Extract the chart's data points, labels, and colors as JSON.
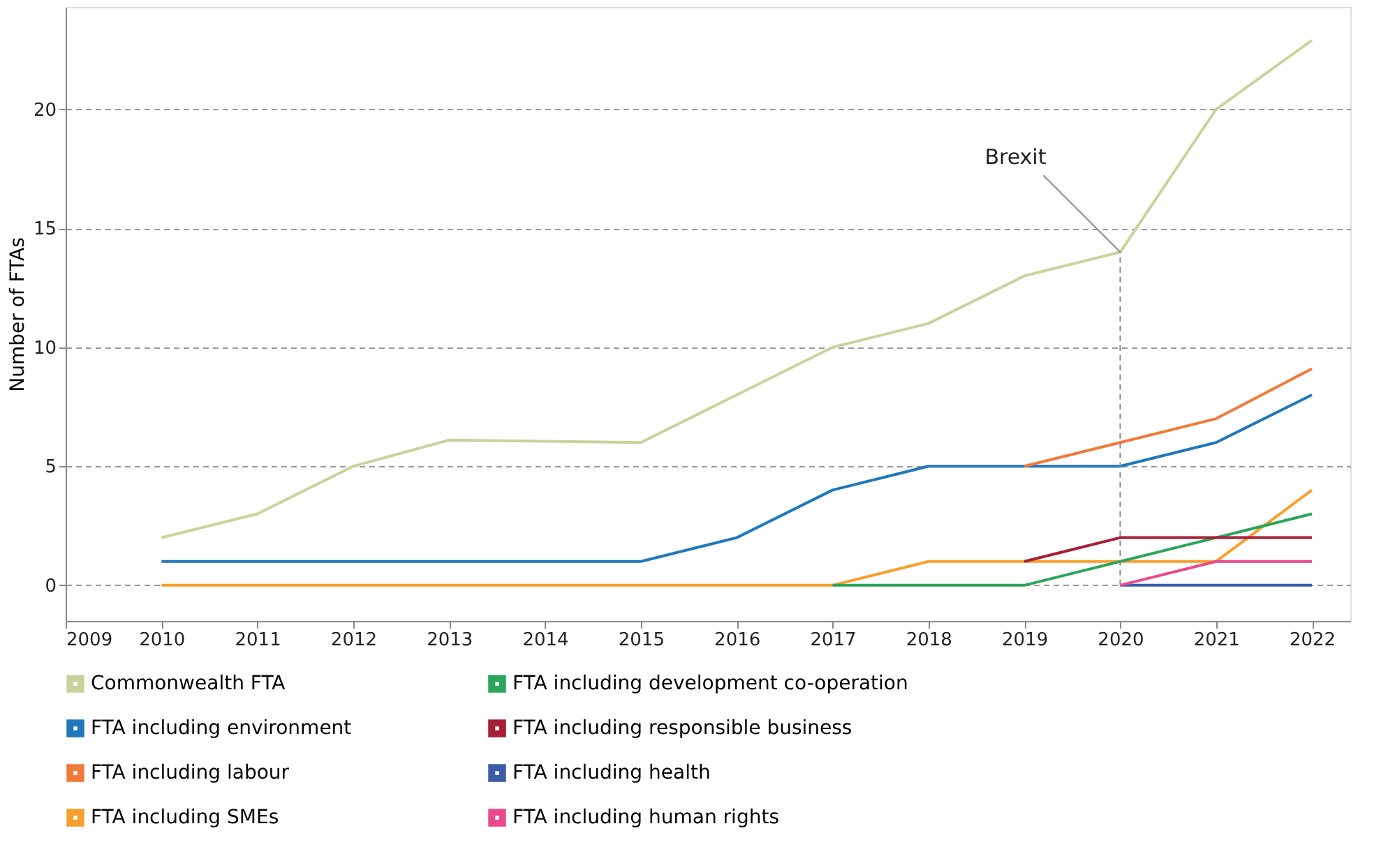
{
  "chart_data": {
    "type": "line",
    "ylabel": "Number of FTAs",
    "xlim": [
      2009,
      2022.4
    ],
    "xticks": [
      2009,
      2010,
      2011,
      2012,
      2013,
      2014,
      2015,
      2016,
      2017,
      2018,
      2019,
      2020,
      2021,
      2022
    ],
    "ylim": [
      -1.5,
      24.3
    ],
    "yticks": [
      0,
      5,
      10,
      15,
      20
    ],
    "grid": "y",
    "legend": "bottom",
    "marker": "none",
    "line_style": "solid",
    "series": [
      {
        "name": "Commonwealth FTA",
        "color": "#c6d49b",
        "x": [
          2010,
          2011,
          2012,
          2013,
          2015,
          2016,
          2017,
          2018,
          2019,
          2020,
          2021,
          2022
        ],
        "values": [
          2,
          3,
          5,
          6.1,
          6,
          8,
          10,
          11,
          13,
          14,
          20,
          22.9
        ]
      },
      {
        "name": "FTA including environment",
        "color": "#1f78bd",
        "x": [
          2010,
          2011,
          2012,
          2013,
          2014,
          2015,
          2016,
          2017,
          2018,
          2019,
          2020,
          2021,
          2022
        ],
        "values": [
          1,
          1,
          1,
          1,
          1,
          1,
          2,
          4,
          5,
          5,
          5,
          6,
          8
        ]
      },
      {
        "name": "FTA including labour",
        "color": "#f07a3a",
        "x": [
          2019,
          2020,
          2021,
          2022
        ],
        "values": [
          5,
          6,
          7,
          9.1
        ]
      },
      {
        "name": "FTA including SMEs",
        "color": "#f8a02e",
        "x": [
          2010,
          2011,
          2012,
          2013,
          2014,
          2015,
          2016,
          2017,
          2018,
          2019,
          2020,
          2021,
          2022
        ],
        "values": [
          0,
          0,
          0,
          0,
          0,
          0,
          0,
          0,
          1,
          1,
          1,
          1,
          4
        ]
      },
      {
        "name": "FTA including development co-operation",
        "color": "#2ba55b",
        "x": [
          2017,
          2018,
          2019,
          2020,
          2021,
          2022
        ],
        "values": [
          0,
          0,
          0,
          1,
          2,
          3
        ]
      },
      {
        "name": "FTA including responsible business",
        "color": "#a61f35",
        "x": [
          2019,
          2020,
          2021,
          2022
        ],
        "values": [
          1,
          2,
          2,
          2
        ]
      },
      {
        "name": "FTA including health",
        "color": "#3b5ca9",
        "x": [
          2020,
          2021,
          2022
        ],
        "values": [
          0,
          0,
          0
        ]
      },
      {
        "name": "FTA including human rights",
        "color": "#e84a8b",
        "x": [
          2020,
          2021,
          2022
        ],
        "values": [
          0,
          1,
          1
        ]
      }
    ],
    "ref_lines": [
      {
        "axis": "x",
        "value": 2020,
        "color": "#888888",
        "line_style": "dashed"
      }
    ],
    "annotations": [
      {
        "text": "Brexit",
        "x": 2020,
        "y": 14
      }
    ]
  }
}
